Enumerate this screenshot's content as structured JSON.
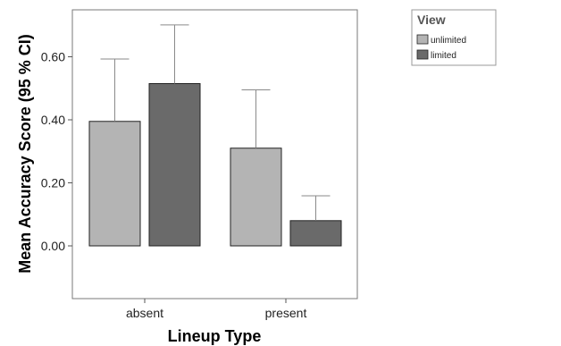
{
  "chart_data": {
    "type": "bar",
    "xlabel": "Lineup Type",
    "ylabel": "Mean Accuracy Score (95 % CI)",
    "categories": [
      "absent",
      "present"
    ],
    "yticks": [
      "0.00",
      "0.20",
      "0.40",
      "0.60"
    ],
    "ylim": [
      -0.15,
      0.75
    ],
    "error_bars": "upper whisker, 95 % CI",
    "grid": false,
    "legend": {
      "title": "View",
      "position": "top-right outside plot"
    },
    "series": [
      {
        "name": "unlimited",
        "color": "#b4b4b4",
        "values": [
          0.395,
          0.31
        ],
        "ci_upper": [
          0.593,
          0.495
        ]
      },
      {
        "name": "limited",
        "color": "#6a6a6a",
        "values": [
          0.515,
          0.08
        ],
        "ci_upper": [
          0.701,
          0.159
        ]
      }
    ]
  }
}
